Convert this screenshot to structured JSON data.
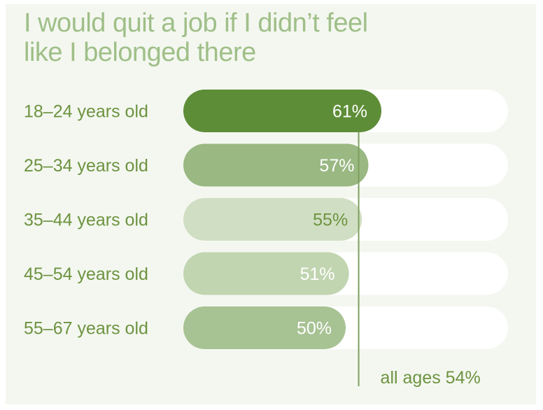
{
  "chart_data": {
    "type": "bar",
    "orientation": "horizontal",
    "title_lines": [
      "I would quit a job if I didn’t feel",
      "like I belonged there"
    ],
    "categories": [
      "18–24 years old",
      "25–34 years old",
      "35–44 years old",
      "45–54 years old",
      "55–67 years old"
    ],
    "values": [
      61,
      57,
      55,
      51,
      50
    ],
    "value_labels": [
      "61%",
      "57%",
      "55%",
      "51%",
      "50%"
    ],
    "xlim": [
      0,
      100
    ],
    "reference_line": {
      "value": 54,
      "label": "all ages 54%"
    },
    "colors": {
      "bars": [
        "#5e8d37",
        "#9ab882",
        "#d0dfc3",
        "#c1d5b0",
        "#a7c293"
      ],
      "value_text": [
        "#ffffff",
        "#ffffff",
        "#6d9340",
        "#ffffff",
        "#ffffff"
      ],
      "track": "#ffffff",
      "reference_line": "#7d9f5e",
      "labels": "#6d9340",
      "title": "#9fbf88"
    }
  }
}
